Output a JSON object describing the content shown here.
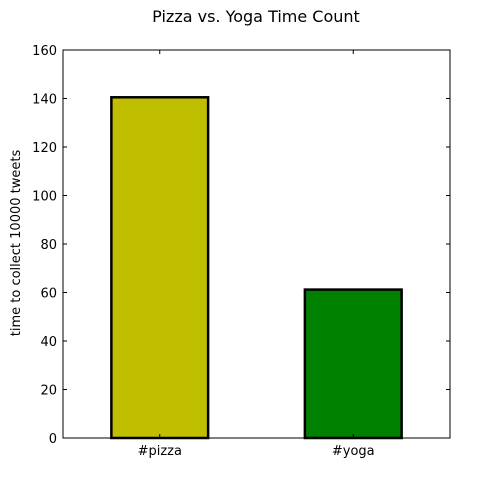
{
  "chart_data": {
    "type": "bar",
    "title": "Pizza vs. Yoga Time Count",
    "xlabel": "",
    "ylabel": "time to collect 10000 tweets",
    "categories": [
      "#pizza",
      "#yoga"
    ],
    "values": [
      140.5,
      61.2
    ],
    "colors": [
      "#bfbf00",
      "#008000"
    ],
    "edge_color": "#000000",
    "ylim": [
      0,
      160
    ],
    "yticks": [
      0,
      20,
      40,
      60,
      80,
      100,
      120,
      140,
      160
    ],
    "ytick_labels": [
      "0",
      "20",
      "40",
      "60",
      "80",
      "100",
      "120",
      "140",
      "160"
    ],
    "grid": false,
    "legend": "none"
  }
}
